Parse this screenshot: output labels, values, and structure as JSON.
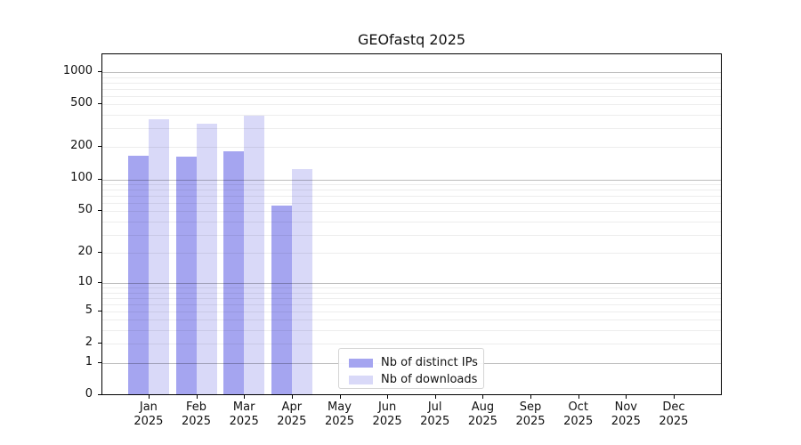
{
  "chart_data": {
    "type": "bar",
    "title": "GEOfastq 2025",
    "scale": "log1p",
    "grid": true,
    "categories": [
      "Jan 2025",
      "Feb 2025",
      "Mar 2025",
      "Apr 2025",
      "May 2025",
      "Jun 2025",
      "Jul 2025",
      "Aug 2025",
      "Sep 2025",
      "Oct 2025",
      "Nov 2025",
      "Dec 2025"
    ],
    "x_tick_months": [
      "Jan",
      "Feb",
      "Mar",
      "Apr",
      "May",
      "Jun",
      "Jul",
      "Aug",
      "Sep",
      "Oct",
      "Nov",
      "Dec"
    ],
    "x_tick_year": "2025",
    "y_ticks": [
      0,
      1,
      2,
      5,
      10,
      20,
      50,
      100,
      200,
      500,
      1000
    ],
    "ylim": [
      0,
      1460
    ],
    "legend_position": "lower center",
    "series": [
      {
        "name": "Nb of distinct IPs",
        "color": "#a5a5f0",
        "values": [
          165,
          163,
          182,
          57,
          null,
          null,
          null,
          null,
          null,
          null,
          null,
          null
        ]
      },
      {
        "name": "Nb of downloads",
        "color": "#d9d9f8",
        "values": [
          365,
          333,
          390,
          125,
          null,
          null,
          null,
          null,
          null,
          null,
          null,
          null
        ]
      }
    ]
  }
}
